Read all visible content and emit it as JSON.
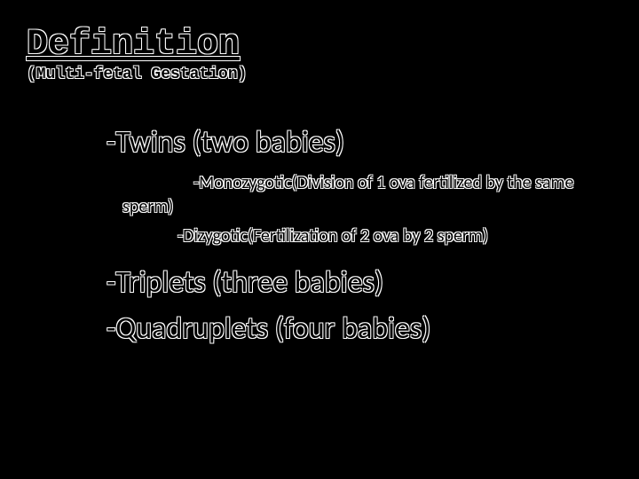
{
  "colors": {
    "background": "#000000",
    "text_fill": "#000000",
    "text_outline": "#ffffff"
  },
  "typography": {
    "title_font": "Consolas, Courier New, monospace",
    "body_font": "Calibri, Segoe UI, sans-serif",
    "title_size_pt": 40,
    "subtitle_size_pt": 18,
    "lvl1_size_pt": 34,
    "lvl2_size_pt": 20
  },
  "header": {
    "title": "Definition",
    "subtitle": "(Multi-fetal Gestation)"
  },
  "body": {
    "items": [
      {
        "text": "-Twins (two babies)",
        "children": [
          "-Monozygotic(Division of 1 ova fertilized by the same sperm)",
          "-Dizygotic(Fertilization of 2 ova by 2 sperm)"
        ]
      },
      {
        "text": "-Triplets (three babies)",
        "children": []
      },
      {
        "text": "-Quadruplets (four babies)",
        "children": []
      }
    ]
  }
}
